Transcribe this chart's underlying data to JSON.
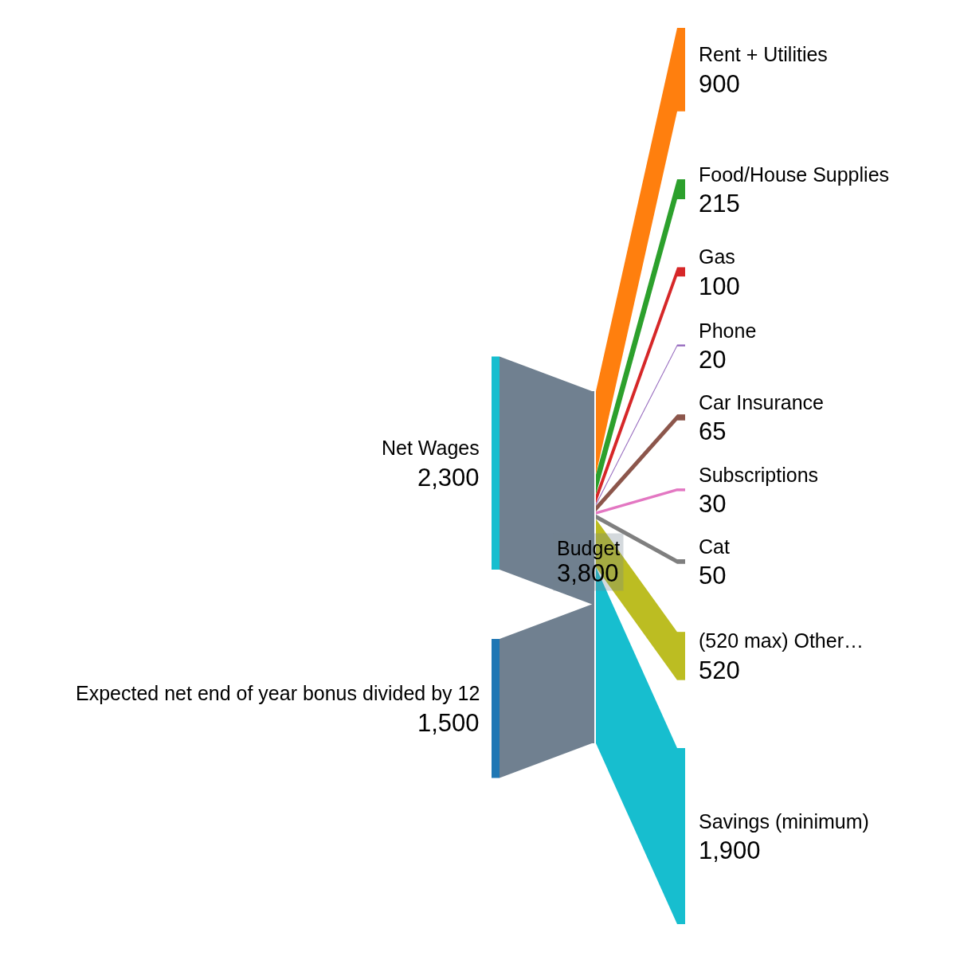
{
  "chart_data": {
    "type": "other",
    "categories": [
      "Net Wages",
      "Expected net end of year bonus divided by 12",
      "Budget",
      "Rent + Utilities",
      "Food/House Supplies",
      "Gas",
      "Phone",
      "Car Insurance",
      "Subscriptions",
      "Cat",
      "(520 max) Other…",
      "Savings (minimum)"
    ],
    "values": [
      2300,
      1500,
      3800,
      900,
      215,
      100,
      20,
      65,
      30,
      50,
      520,
      1900
    ],
    "value_labels": [
      "2,300",
      "1,500",
      "3,800",
      "900",
      "215",
      "100",
      "20",
      "65",
      "30",
      "50",
      "520",
      "1,900"
    ],
    "colors": [
      "#17becf",
      "#1f77b4",
      "#708090",
      "#ff7f0e",
      "#2ca02c",
      "#d62728",
      "#9467bd",
      "#8c564b",
      "#e377c2",
      "#7f7f7f",
      "#bcbd22",
      "#17becf"
    ]
  }
}
